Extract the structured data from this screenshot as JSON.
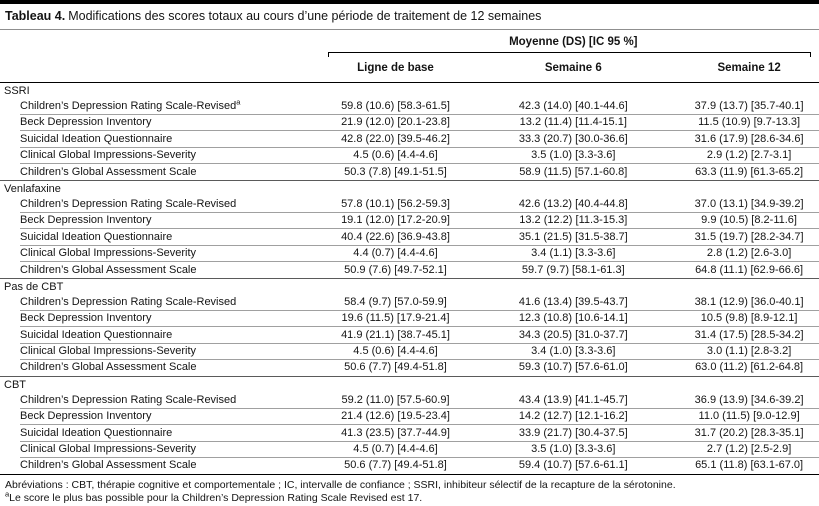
{
  "title": {
    "label": "Tableau 4.",
    "text": "Modifications des scores totaux au cours d’une période de traitement de 12 semaines"
  },
  "header": {
    "spanner": "Moyenne (DS) [IC 95 %]",
    "columns": [
      "Ligne de base",
      "Semaine 6",
      "Semaine 12"
    ]
  },
  "sections": [
    {
      "name": "SSRI",
      "rows": [
        {
          "label": "Children’s Depression Rating Scale-Revised",
          "sup": "a",
          "values": [
            "59.8 (10.6) [58.3-61.5]",
            "42.3 (14.0) [40.1-44.6]",
            "37.9 (13.7) [35.7-40.1]"
          ]
        },
        {
          "label": "Beck Depression Inventory",
          "values": [
            "21.9 (12.0) [20.1-23.8]",
            "13.2 (11.4) [11.4-15.1]",
            "11.5 (10.9) [9.7-13.3]"
          ]
        },
        {
          "label": "Suicidal Ideation Questionnaire",
          "values": [
            "42.8 (22.0) [39.5-46.2]",
            "33.3 (20.7) [30.0-36.6]",
            "31.6 (17.9) [28.6-34.6]"
          ]
        },
        {
          "label": "Clinical Global Impressions-Severity",
          "values": [
            "4.5 (0.6) [4.4-4.6]",
            "3.5 (1.0) [3.3-3.6]",
            "2.9 (1.2) [2.7-3.1]"
          ]
        },
        {
          "label": "Children’s Global Assessment Scale",
          "values": [
            "50.3 (7.8) [49.1-51.5]",
            "58.9 (11.5) [57.1-60.8]",
            "63.3 (11.9) [61.3-65.2]"
          ]
        }
      ]
    },
    {
      "name": "Venlafaxine",
      "rows": [
        {
          "label": "Children’s Depression Rating Scale-Revised",
          "values": [
            "57.8 (10.1) [56.2-59.3]",
            "42.6 (13.2) [40.4-44.8]",
            "37.0 (13.1) [34.9-39.2]"
          ]
        },
        {
          "label": "Beck Depression Inventory",
          "values": [
            "19.1 (12.0) [17.2-20.9]",
            "13.2 (12.2) [11.3-15.3]",
            "9.9 (10.5) [8.2-11.6]"
          ]
        },
        {
          "label": "Suicidal Ideation Questionnaire",
          "values": [
            "40.4 (22.6) [36.9-43.8]",
            "35.1 (21.5) [31.5-38.7]",
            "31.5 (19.7) [28.2-34.7]"
          ]
        },
        {
          "label": "Clinical Global Impressions-Severity",
          "values": [
            "4.4 (0.7) [4.4-4.6]",
            "3.4 (1.1) [3.3-3.6]",
            "2.8 (1.2) [2.6-3.0]"
          ]
        },
        {
          "label": "Children’s Global Assessment Scale",
          "values": [
            "50.9 (7.6) [49.7-52.1]",
            "59.7 (9.7) [58.1-61.3]",
            "64.8 (11.1) [62.9-66.6]"
          ]
        }
      ]
    },
    {
      "name": "Pas de CBT",
      "rows": [
        {
          "label": "Children’s Depression Rating Scale-Revised",
          "values": [
            "58.4 (9.7) [57.0-59.9]",
            "41.6 (13.4) [39.5-43.7]",
            "38.1 (12.9) [36.0-40.1]"
          ]
        },
        {
          "label": "Beck Depression Inventory",
          "values": [
            "19.6 (11.5) [17.9-21.4]",
            "12.3 (10.8) [10.6-14.1]",
            "10.5 (9.8) [8.9-12.1]"
          ]
        },
        {
          "label": "Suicidal Ideation Questionnaire",
          "values": [
            "41.9 (21.1) [38.7-45.1]",
            "34.3 (20.5) [31.0-37.7]",
            "31.4 (17.5) [28.5-34.2]"
          ]
        },
        {
          "label": "Clinical Global Impressions-Severity",
          "values": [
            "4.5 (0.6) [4.4-4.6]",
            "3.4 (1.0) [3.3-3.6]",
            "3.0 (1.1) [2.8-3.2]"
          ]
        },
        {
          "label": "Children’s Global Assessment Scale",
          "values": [
            "50.6 (7.7) [49.4-51.8]",
            "59.3 (10.7) [57.6-61.0]",
            "63.0 (11.2) [61.2-64.8]"
          ]
        }
      ]
    },
    {
      "name": "CBT",
      "rows": [
        {
          "label": "Children’s Depression Rating Scale-Revised",
          "values": [
            "59.2 (11.0) [57.5-60.9]",
            "43.4 (13.9) [41.1-45.7]",
            "36.9 (13.9) [34.6-39.2]"
          ]
        },
        {
          "label": "Beck Depression Inventory",
          "values": [
            "21.4 (12.6) [19.5-23.4]",
            "14.2 (12.7) [12.1-16.2]",
            "11.0 (11.5) [9.0-12.9]"
          ]
        },
        {
          "label": "Suicidal Ideation Questionnaire",
          "values": [
            "41.3 (23.5) [37.7-44.9]",
            "33.9 (21.7) [30.4-37.5]",
            "31.7 (20.2) [28.3-35.1]"
          ]
        },
        {
          "label": "Clinical Global Impressions-Severity",
          "values": [
            "4.5 (0.7) [4.4-4.6]",
            "3.5 (1.0) [3.3-3.6]",
            "2.7 (1.2) [2.5-2.9]"
          ]
        },
        {
          "label": "Children’s Global Assessment Scale",
          "values": [
            "50.6 (7.7) [49.4-51.8]",
            "59.4 (10.7) [57.6-61.1]",
            "65.1 (11.8) [63.1-67.0]"
          ]
        }
      ]
    }
  ],
  "footnotes": {
    "abbreviations": "Abréviations : CBT, thérapie cognitive et comportementale ; IC, intervalle de confiance ; SSRI, inhibiteur sélectif de la recapture de la sérotonine.",
    "note_sup": "a",
    "note_text": "Le score le plus bas possible pour la Children’s Depression Rating Scale Revised est 17."
  }
}
